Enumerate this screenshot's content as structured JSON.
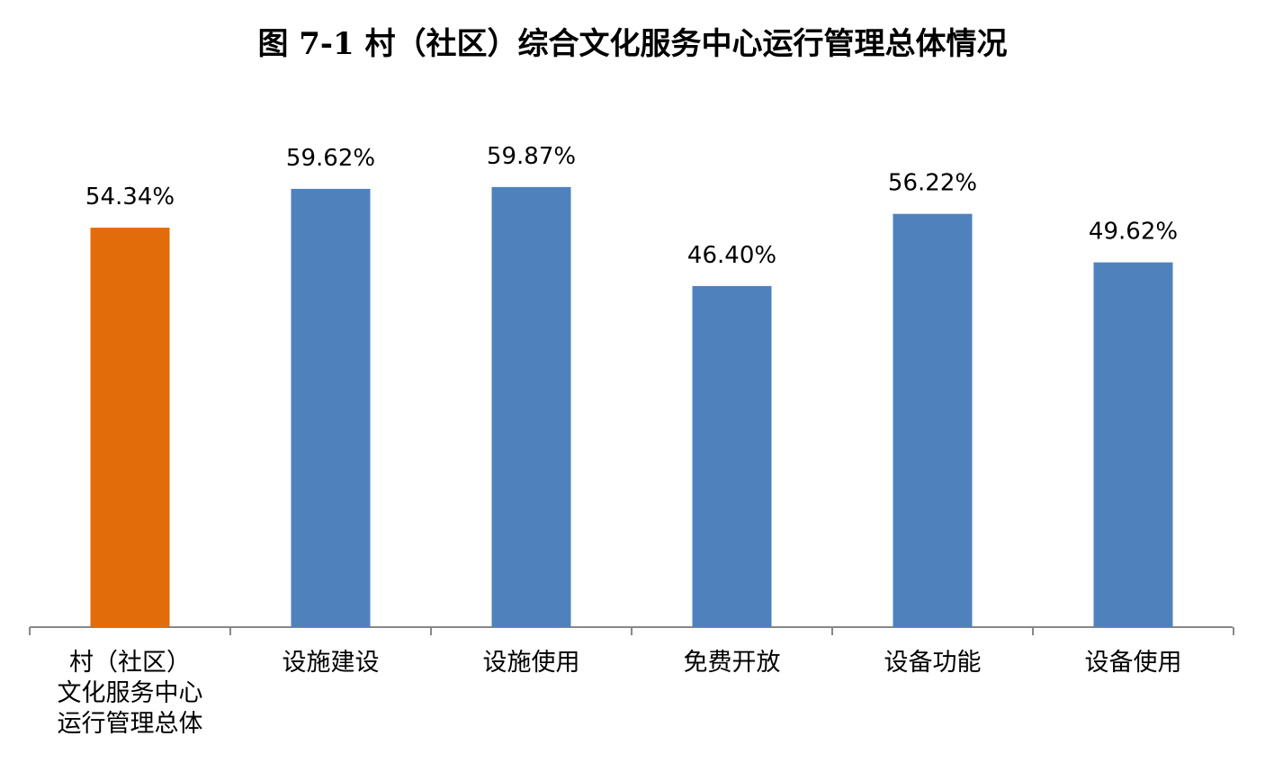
{
  "chart_data": {
    "type": "bar",
    "title": "图 7-1 村（社区）综合文化服务中心运行管理总体情况",
    "categories": [
      "村（社区）\n文化服务中心\n运行管理总体",
      "设施建设",
      "设施使用",
      "免费开放",
      "设备功能",
      "设备使用"
    ],
    "values": [
      54.34,
      59.62,
      59.87,
      46.4,
      56.22,
      49.62
    ],
    "value_labels": [
      "54.34%",
      "59.62%",
      "59.87%",
      "46.40%",
      "56.22%",
      "49.62%"
    ],
    "colors": [
      "#e36c0a",
      "#4f81bd",
      "#4f81bd",
      "#4f81bd",
      "#4f81bd",
      "#4f81bd"
    ]
  }
}
